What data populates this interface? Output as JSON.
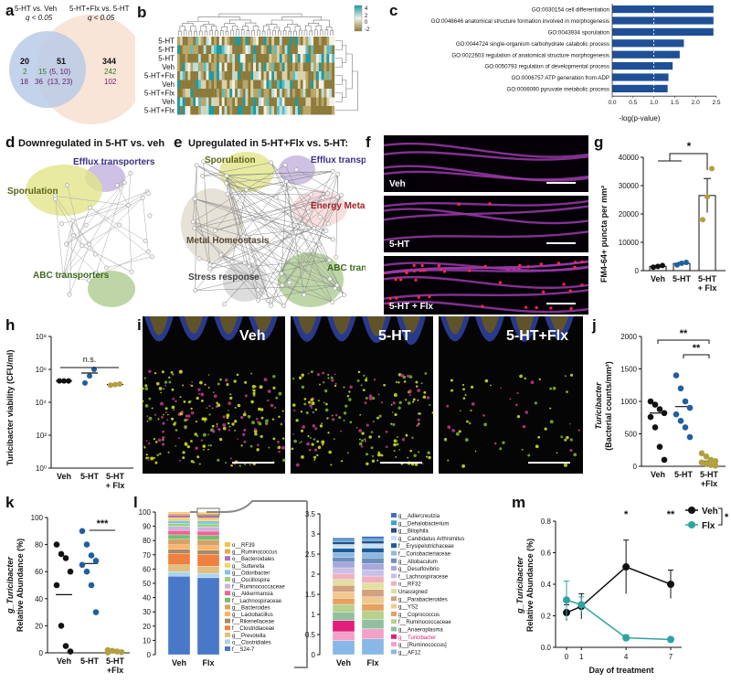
{
  "panel_labels": {
    "a": "a",
    "b": "b",
    "c": "c",
    "d": "d",
    "e": "e",
    "f": "f",
    "g": "g",
    "h": "h",
    "i": "i",
    "j": "j",
    "k": "k",
    "l": "l",
    "m": "m"
  },
  "panel_a": {
    "col1": "5-HT vs. Veh",
    "col1_q": "q < 0.05",
    "col2": "5-HT+Flx vs. 5-HT",
    "col2_q": "q < 0.05",
    "left_total": "20",
    "overlap_total": "51",
    "right_total": "344",
    "left_down": "2",
    "left_up": "18",
    "overlap_a": "15",
    "overlap_b": "(5, 10)",
    "overlap_c": "36",
    "overlap_d": "(13, 23)",
    "right_up": "242",
    "right_down": "102",
    "colors": {
      "left": "#b5c7e6",
      "right": "#f8e0d2",
      "green": "#2e7d32",
      "purple": "#6a1b6a",
      "blue_text": "#1e3a8a"
    }
  },
  "panel_b": {
    "rows": [
      "5-HT",
      "5-HT",
      "5-HT",
      "Veh",
      "5-HT+Flx",
      "Veh",
      "5-HT+Flx",
      "Veh",
      "5-HT+Flx"
    ],
    "legend_max": "4",
    "legend_mid": "2",
    "legend_zero": "0",
    "legend_min": "-2"
  },
  "panel_c": {
    "chart_data": {
      "type": "bar",
      "categories": [
        "GO:0030154 cell differentiation",
        "GO:0048646 anatomical structure formation involved in morphogenesis",
        "GO:0043934 sporulation",
        "GO:0044724 single-organism carbohydrate catabolic process",
        "GO:0022603 regulation of anatomical structure morphogenesis",
        "GO:0050793 regulation of developmental process",
        "GO:0006757 ATP generation from ADP",
        "GO:0006090 pyruvate metabolic process"
      ],
      "values": [
        2.43,
        2.43,
        2.43,
        1.72,
        1.62,
        1.45,
        1.35,
        1.33
      ],
      "xlabel": "-log(p-value)",
      "xlim": [
        0,
        2.5
      ],
      "xticks": [
        "0.0",
        "0.5",
        "1.0",
        "1.5",
        "2.0",
        "2.5"
      ],
      "threshold": 1.0,
      "bar_color": "#1f4f96"
    }
  },
  "panel_d": {
    "title": "Downregulated in 5-HT vs. veh",
    "clusters": [
      "Efflux transporters",
      "Sporulation",
      "ABC transporters"
    ]
  },
  "panel_e": {
    "title": "Upregulated in 5-HT+Flx vs. 5-HT:",
    "clusters": [
      "Sporulation",
      "Efflux transporters",
      "Energy Metabolism",
      "Metal Homeostasis",
      "Stress response",
      "ABC transporters"
    ]
  },
  "panel_f": {
    "labels": [
      "Veh",
      "5-HT",
      "5-HT + Flx"
    ]
  },
  "panel_g": {
    "chart_data": {
      "type": "bar",
      "categories": [
        "Veh",
        "5-HT",
        "5-HT + Flx"
      ],
      "values": [
        1500,
        2500,
        26500
      ],
      "errors": [
        300,
        400,
        6000
      ],
      "points": [
        [
          1200,
          1500,
          1800
        ],
        [
          2000,
          2600,
          2900
        ],
        [
          18000,
          26000,
          36000
        ]
      ],
      "ylabel": "FM4-64+ puncta per mm²",
      "ylim": [
        0,
        40000
      ],
      "yticks": [
        "0",
        "10000",
        "20000",
        "30000",
        "40000"
      ],
      "significance": "*"
    }
  },
  "panel_h": {
    "chart_data": {
      "type": "scatter",
      "categories": [
        "Veh",
        "5-HT",
        "5-HT + Flx"
      ],
      "means": [
        200000,
        600000,
        120000
      ],
      "points": [
        [
          200000,
          200000,
          200000
        ],
        [
          150000,
          400000,
          1000000
        ],
        [
          110000,
          120000,
          130000
        ]
      ],
      "ylabel": "Turicibacter viability (CFU/ml)",
      "yscale": "log",
      "yticks": [
        "10⁰",
        "10²",
        "10⁴",
        "10⁶",
        "10⁸"
      ],
      "significance": "n.s."
    }
  },
  "panel_i": {
    "labels": [
      "Veh",
      "5-HT",
      "5-HT+Flx"
    ]
  },
  "panel_j": {
    "chart_data": {
      "type": "scatter",
      "categories": [
        "Veh",
        "5-HT",
        "5-HT +Flx"
      ],
      "means": [
        820,
        920,
        80
      ],
      "points": [
        [
          1000,
          950,
          880,
          820,
          760,
          600,
          300,
          100
        ],
        [
          1400,
          1200,
          1000,
          900,
          800,
          700,
          600,
          450
        ],
        [
          200,
          150,
          100,
          80,
          60,
          40,
          20,
          10
        ]
      ],
      "ylabel_italic": "Turicibacter",
      "ylabel": "(Bacterial counts/mm²)",
      "ylim": [
        0,
        2000
      ],
      "yticks": [
        "0",
        "500",
        "1000",
        "1500",
        "2000"
      ],
      "significance": [
        "**",
        "**"
      ],
      "colors": [
        "#111111",
        "#1f5fa0",
        "#b2a040"
      ]
    }
  },
  "panel_k": {
    "chart_data": {
      "type": "scatter",
      "categories": [
        "Veh",
        "5-HT",
        "5-HT +Flx"
      ],
      "means": [
        43,
        66,
        1
      ],
      "points": [
        [
          80,
          73,
          70,
          60,
          50,
          20,
          5,
          1
        ],
        [
          90,
          80,
          72,
          68,
          65,
          60,
          50,
          30
        ],
        [
          2,
          1.5,
          1,
          0.5,
          0.3
        ]
      ],
      "ylabel_italic": "g_Turicibacter",
      "ylabel": "Relative Abundance (%)",
      "ylim": [
        0,
        100
      ],
      "yticks": [
        "0",
        "20",
        "40",
        "60",
        "80",
        "100"
      ],
      "significance": "***",
      "colors": [
        "#111111",
        "#1f5fa0",
        "#b2a040"
      ]
    }
  },
  "panel_l": {
    "chart_data": {
      "type": "bar",
      "categories": [
        "Veh",
        "Flx"
      ],
      "left_yticks": [
        "0",
        "10",
        "20",
        "30",
        "40",
        "50",
        "60",
        "70",
        "80",
        "90",
        "100"
      ],
      "right_yticks": [
        "0",
        "0.5",
        "1",
        "1.5",
        "2",
        "2.5",
        "3",
        "3.5"
      ],
      "left_legend": [
        "o__RF39",
        "g__Ruminococcus",
        "o__Bacteroidales",
        "g__Sutterella",
        "g__Odoribacter",
        "g__Oscillospira",
        "f__Ruminococcaceae",
        "g__Akkermansia",
        "f__Lachnospiraceae",
        "g__Bacteroides",
        "g__Lactobacillus",
        "f__Rikenellaceae",
        "f__Clostridiaceae",
        "g__Prevotella",
        "o__Clostridiales",
        "f__S24-7"
      ],
      "right_legend": [
        "g__Adlercreutzia",
        "g__Dehalobacterium",
        "g__Bilophila",
        "g__Candidatus Arthromitus",
        "f__Erysipelotrichaceae",
        "f__Coriobacteriaceae",
        "g__Allobaculum",
        "g__Desulfovibrio",
        "f__Lachnospiraceae",
        "o__RF32",
        "Unassigned",
        "g__Parabacteroides",
        "g__YS2",
        "g__Coprococcus",
        "f__Ruminococcaceae",
        "g__Anaeroplasma",
        "g__Turicibacter",
        "g__[Ruminococcus]",
        "g__AF12"
      ],
      "highlight_color": "#e0207a"
    }
  },
  "panel_m": {
    "chart_data": {
      "type": "line",
      "x": [
        0,
        1,
        4,
        7
      ],
      "xticks": [
        "0",
        "1",
        "4",
        "7"
      ],
      "xlabel": "Day of treatment",
      "ylabel_italic": "g_Turicibacter",
      "ylabel": "Relative Abundance (%)",
      "ylim": [
        0,
        0.8
      ],
      "yticks": [
        "0.0",
        "0.2",
        "0.4",
        "0.6",
        "0.8"
      ],
      "series": [
        {
          "name": "Veh",
          "values": [
            0.22,
            0.26,
            0.51,
            0.4
          ],
          "errors": [
            0.05,
            0.08,
            0.17,
            0.09
          ],
          "color": "#111111"
        },
        {
          "name": "Flx",
          "values": [
            0.3,
            0.27,
            0.06,
            0.05
          ],
          "errors": [
            0.12,
            0.05,
            0.02,
            0.01
          ],
          "color": "#2fa3a0"
        }
      ],
      "annotations": [
        "*",
        "**",
        "*"
      ]
    }
  }
}
